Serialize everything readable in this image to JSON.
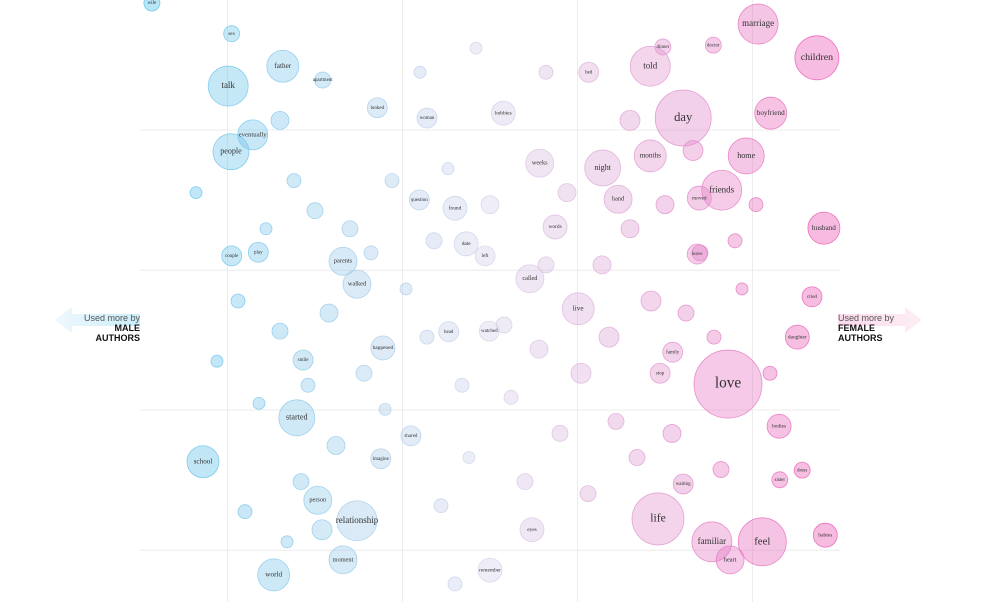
{
  "chart_data": {
    "type": "bubble",
    "xlim": [
      0,
      100
    ],
    "ylim": [
      0,
      100
    ],
    "xticks": [
      12.5,
      37.5,
      62.5,
      87.5
    ],
    "yticks": [
      8.6,
      31.9,
      55.1,
      78.4
    ],
    "grid": true,
    "colors": {
      "male": "#4cc0ea",
      "neutral": "#d6d3ea",
      "female": "#ec4fb0"
    },
    "left_annotation": {
      "lead": "Used more by",
      "group": "MALE AUTHORS"
    },
    "right_annotation": {
      "lead": "Used more by",
      "group": "FEMALE AUTHORS"
    },
    "points": [
      {
        "label": "wife",
        "x": 1.7,
        "y": 99.5,
        "size": 8
      },
      {
        "label": "sex",
        "x": 13.1,
        "y": 94.4,
        "size": 8
      },
      {
        "label": "talk",
        "x": 12.6,
        "y": 85.7,
        "size": 20
      },
      {
        "label": "father",
        "x": 20.4,
        "y": 89.0,
        "size": 16
      },
      {
        "label": "apartment",
        "x": 26.1,
        "y": 86.7,
        "size": 8
      },
      {
        "label": "people",
        "x": 13.0,
        "y": 74.8,
        "size": 18
      },
      {
        "label": "eventually",
        "x": 16.1,
        "y": 77.6,
        "size": 15
      },
      {
        "label": "looked",
        "x": 33.9,
        "y": 82.1,
        "size": 10
      },
      {
        "label": "woman",
        "x": 41.0,
        "y": 80.4,
        "size": 10
      },
      {
        "label": "hobbies",
        "x": 51.9,
        "y": 81.2,
        "size": 12
      },
      {
        "label": "bed",
        "x": 64.1,
        "y": 88.0,
        "size": 10
      },
      {
        "label": "told",
        "x": 72.9,
        "y": 89.0,
        "size": 20
      },
      {
        "label": "dinner",
        "x": 74.7,
        "y": 92.2,
        "size": 8
      },
      {
        "label": "doctor",
        "x": 81.9,
        "y": 92.5,
        "size": 8
      },
      {
        "label": "marriage",
        "x": 88.3,
        "y": 96.0,
        "size": 20
      },
      {
        "label": "children",
        "x": 96.7,
        "y": 90.4,
        "size": 22
      },
      {
        "label": "boyfriend",
        "x": 90.1,
        "y": 81.2,
        "size": 16
      },
      {
        "label": "day",
        "x": 77.6,
        "y": 80.4,
        "size": 28
      },
      {
        "label": "home",
        "x": 86.6,
        "y": 74.1,
        "size": 18
      },
      {
        "label": "months",
        "x": 72.9,
        "y": 74.1,
        "size": 16
      },
      {
        "label": "night",
        "x": 66.1,
        "y": 72.1,
        "size": 18
      },
      {
        "label": "weeks",
        "x": 57.1,
        "y": 72.9,
        "size": 14
      },
      {
        "label": "friends",
        "x": 83.1,
        "y": 68.4,
        "size": 20
      },
      {
        "label": "moved",
        "x": 79.9,
        "y": 67.1,
        "size": 12
      },
      {
        "label": "hand",
        "x": 68.3,
        "y": 66.9,
        "size": 14
      },
      {
        "label": "found",
        "x": 45.0,
        "y": 65.4,
        "size": 12
      },
      {
        "label": "question",
        "x": 39.9,
        "y": 66.8,
        "size": 10
      },
      {
        "label": "date",
        "x": 46.6,
        "y": 59.5,
        "size": 12
      },
      {
        "label": "left",
        "x": 49.3,
        "y": 57.5,
        "size": 10
      },
      {
        "label": "words",
        "x": 59.3,
        "y": 62.3,
        "size": 12
      },
      {
        "label": "husband",
        "x": 97.7,
        "y": 62.1,
        "size": 16
      },
      {
        "label": "play",
        "x": 16.9,
        "y": 58.1,
        "size": 10
      },
      {
        "label": "couple",
        "x": 13.1,
        "y": 57.5,
        "size": 10
      },
      {
        "label": "parents",
        "x": 29.0,
        "y": 56.6,
        "size": 14
      },
      {
        "label": "walked",
        "x": 31.0,
        "y": 52.8,
        "size": 14
      },
      {
        "label": "called",
        "x": 55.7,
        "y": 53.7,
        "size": 14
      },
      {
        "label": "live",
        "x": 62.6,
        "y": 48.7,
        "size": 16
      },
      {
        "label": "leave",
        "x": 79.6,
        "y": 57.8,
        "size": 10
      },
      {
        "label": "cried",
        "x": 96.0,
        "y": 50.7,
        "size": 10
      },
      {
        "label": "school",
        "x": 9.0,
        "y": 23.3,
        "size": 16
      },
      {
        "label": "started",
        "x": 22.4,
        "y": 30.6,
        "size": 18
      },
      {
        "label": "happened",
        "x": 34.7,
        "y": 42.2,
        "size": 12
      },
      {
        "label": "shared",
        "x": 38.7,
        "y": 27.6,
        "size": 10
      },
      {
        "label": "watched",
        "x": 49.9,
        "y": 45.0,
        "size": 10
      },
      {
        "label": "head",
        "x": 44.1,
        "y": 44.9,
        "size": 10
      },
      {
        "label": "love",
        "x": 84.0,
        "y": 36.2,
        "size": 34
      },
      {
        "label": "family",
        "x": 76.1,
        "y": 41.5,
        "size": 10
      },
      {
        "label": "stop",
        "x": 74.3,
        "y": 38.0,
        "size": 10
      },
      {
        "label": "life",
        "x": 74.0,
        "y": 13.8,
        "size": 26
      },
      {
        "label": "familiar",
        "x": 81.7,
        "y": 10.0,
        "size": 20
      },
      {
        "label": "feel",
        "x": 88.9,
        "y": 10.0,
        "size": 24
      },
      {
        "label": "heart",
        "x": 84.3,
        "y": 7.0,
        "size": 14
      },
      {
        "label": "eyes",
        "x": 56.0,
        "y": 12.0,
        "size": 12
      },
      {
        "label": "relationship",
        "x": 31.0,
        "y": 13.5,
        "size": 20
      },
      {
        "label": "person",
        "x": 25.4,
        "y": 16.9,
        "size": 14
      },
      {
        "label": "moment",
        "x": 29.0,
        "y": 7.0,
        "size": 14
      },
      {
        "label": "world",
        "x": 19.1,
        "y": 4.5,
        "size": 16
      },
      {
        "label": "remember",
        "x": 50.0,
        "y": 5.3,
        "size": 12
      },
      {
        "label": "smile",
        "x": 23.3,
        "y": 40.2,
        "size": 10
      },
      {
        "label": "babies",
        "x": 97.9,
        "y": 11.1,
        "size": 12
      },
      {
        "label": "bodies",
        "x": 91.3,
        "y": 29.2,
        "size": 12
      },
      {
        "label": "daughter",
        "x": 93.9,
        "y": 44.0,
        "size": 12
      },
      {
        "label": "waiting",
        "x": 77.6,
        "y": 19.6,
        "size": 10
      },
      {
        "label": "imagine",
        "x": 34.4,
        "y": 23.8,
        "size": 10
      },
      {
        "label": "dress",
        "x": 94.6,
        "y": 21.9,
        "size": 8
      },
      {
        "label": "sister",
        "x": 91.4,
        "y": 20.3,
        "size": 8
      }
    ],
    "unlabeled": [
      {
        "x": 20,
        "y": 80,
        "size": 9
      },
      {
        "x": 22,
        "y": 70,
        "size": 7
      },
      {
        "x": 25,
        "y": 65,
        "size": 8
      },
      {
        "x": 18,
        "y": 62,
        "size": 6
      },
      {
        "x": 27,
        "y": 48,
        "size": 9
      },
      {
        "x": 20,
        "y": 45,
        "size": 8
      },
      {
        "x": 24,
        "y": 36,
        "size": 7
      },
      {
        "x": 17,
        "y": 33,
        "size": 6
      },
      {
        "x": 28,
        "y": 26,
        "size": 9
      },
      {
        "x": 23,
        "y": 20,
        "size": 8
      },
      {
        "x": 26,
        "y": 12,
        "size": 10
      },
      {
        "x": 21,
        "y": 10,
        "size": 6
      },
      {
        "x": 30,
        "y": 62,
        "size": 8
      },
      {
        "x": 33,
        "y": 58,
        "size": 7
      },
      {
        "x": 32,
        "y": 38,
        "size": 8
      },
      {
        "x": 35,
        "y": 32,
        "size": 6
      },
      {
        "x": 36,
        "y": 70,
        "size": 7
      },
      {
        "x": 38,
        "y": 52,
        "size": 6
      },
      {
        "x": 41,
        "y": 44,
        "size": 7
      },
      {
        "x": 42,
        "y": 60,
        "size": 8
      },
      {
        "x": 44,
        "y": 72,
        "size": 6
      },
      {
        "x": 46,
        "y": 36,
        "size": 7
      },
      {
        "x": 47,
        "y": 24,
        "size": 6
      },
      {
        "x": 43,
        "y": 16,
        "size": 7
      },
      {
        "x": 50,
        "y": 66,
        "size": 9
      },
      {
        "x": 52,
        "y": 46,
        "size": 8
      },
      {
        "x": 53,
        "y": 34,
        "size": 7
      },
      {
        "x": 55,
        "y": 20,
        "size": 8
      },
      {
        "x": 57,
        "y": 42,
        "size": 9
      },
      {
        "x": 58,
        "y": 56,
        "size": 8
      },
      {
        "x": 60,
        "y": 28,
        "size": 8
      },
      {
        "x": 61,
        "y": 68,
        "size": 9
      },
      {
        "x": 63,
        "y": 38,
        "size": 10
      },
      {
        "x": 64,
        "y": 18,
        "size": 8
      },
      {
        "x": 66,
        "y": 56,
        "size": 9
      },
      {
        "x": 67,
        "y": 44,
        "size": 10
      },
      {
        "x": 68,
        "y": 30,
        "size": 8
      },
      {
        "x": 70,
        "y": 80,
        "size": 10
      },
      {
        "x": 70,
        "y": 62,
        "size": 9
      },
      {
        "x": 71,
        "y": 24,
        "size": 8
      },
      {
        "x": 73,
        "y": 50,
        "size": 10
      },
      {
        "x": 75,
        "y": 66,
        "size": 9
      },
      {
        "x": 76,
        "y": 28,
        "size": 9
      },
      {
        "x": 78,
        "y": 48,
        "size": 8
      },
      {
        "x": 79,
        "y": 75,
        "size": 10
      },
      {
        "x": 80,
        "y": 58,
        "size": 8
      },
      {
        "x": 82,
        "y": 44,
        "size": 7
      },
      {
        "x": 83,
        "y": 22,
        "size": 8
      },
      {
        "x": 85,
        "y": 60,
        "size": 7
      },
      {
        "x": 86,
        "y": 52,
        "size": 6
      },
      {
        "x": 88,
        "y": 66,
        "size": 7
      },
      {
        "x": 90,
        "y": 38,
        "size": 7
      },
      {
        "x": 14,
        "y": 50,
        "size": 7
      },
      {
        "x": 11,
        "y": 40,
        "size": 6
      },
      {
        "x": 8,
        "y": 68,
        "size": 6
      },
      {
        "x": 15,
        "y": 15,
        "size": 7
      },
      {
        "x": 40,
        "y": 88,
        "size": 6
      },
      {
        "x": 48,
        "y": 92,
        "size": 6
      },
      {
        "x": 58,
        "y": 88,
        "size": 7
      },
      {
        "x": 45,
        "y": 3,
        "size": 7
      }
    ]
  }
}
